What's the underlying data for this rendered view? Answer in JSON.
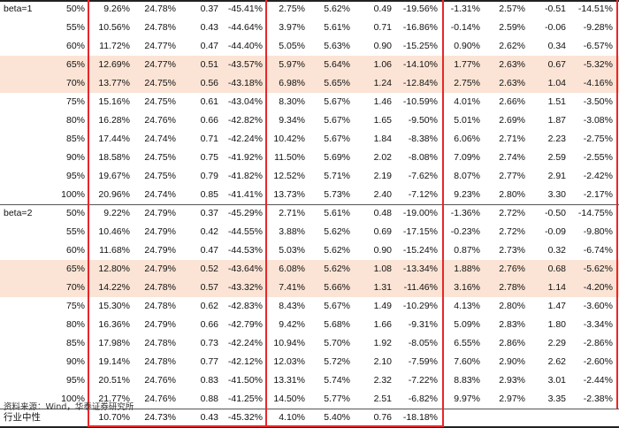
{
  "groups": [
    {
      "label": "beta=1",
      "rows": [
        [
          "50%",
          "9.26%",
          "24.78%",
          "0.37",
          "-45.41%",
          "2.75%",
          "5.62%",
          "0.49",
          "-19.56%",
          "-1.31%",
          "2.57%",
          "-0.51",
          "-14.51%"
        ],
        [
          "55%",
          "10.56%",
          "24.78%",
          "0.43",
          "-44.64%",
          "3.97%",
          "5.61%",
          "0.71",
          "-16.86%",
          "-0.14%",
          "2.59%",
          "-0.06",
          "-9.28%"
        ],
        [
          "60%",
          "11.72%",
          "24.77%",
          "0.47",
          "-44.40%",
          "5.05%",
          "5.63%",
          "0.90",
          "-15.25%",
          "0.90%",
          "2.62%",
          "0.34",
          "-6.57%"
        ],
        [
          "65%",
          "12.69%",
          "24.77%",
          "0.51",
          "-43.57%",
          "5.97%",
          "5.64%",
          "1.06",
          "-14.10%",
          "1.77%",
          "2.63%",
          "0.67",
          "-5.32%"
        ],
        [
          "70%",
          "13.77%",
          "24.75%",
          "0.56",
          "-43.18%",
          "6.98%",
          "5.65%",
          "1.24",
          "-12.84%",
          "2.75%",
          "2.63%",
          "1.04",
          "-4.16%"
        ],
        [
          "75%",
          "15.16%",
          "24.75%",
          "0.61",
          "-43.04%",
          "8.30%",
          "5.67%",
          "1.46",
          "-10.59%",
          "4.01%",
          "2.66%",
          "1.51",
          "-3.50%"
        ],
        [
          "80%",
          "16.28%",
          "24.76%",
          "0.66",
          "-42.82%",
          "9.34%",
          "5.67%",
          "1.65",
          "-9.50%",
          "5.01%",
          "2.69%",
          "1.87",
          "-3.08%"
        ],
        [
          "85%",
          "17.44%",
          "24.74%",
          "0.71",
          "-42.24%",
          "10.42%",
          "5.67%",
          "1.84",
          "-8.38%",
          "6.06%",
          "2.71%",
          "2.23",
          "-2.75%"
        ],
        [
          "90%",
          "18.58%",
          "24.75%",
          "0.75",
          "-41.92%",
          "11.50%",
          "5.69%",
          "2.02",
          "-8.08%",
          "7.09%",
          "2.74%",
          "2.59",
          "-2.55%"
        ],
        [
          "95%",
          "19.67%",
          "24.75%",
          "0.79",
          "-41.82%",
          "12.52%",
          "5.71%",
          "2.19",
          "-7.62%",
          "8.07%",
          "2.77%",
          "2.91",
          "-2.42%"
        ],
        [
          "100%",
          "20.96%",
          "24.74%",
          "0.85",
          "-41.41%",
          "13.73%",
          "5.73%",
          "2.40",
          "-7.12%",
          "9.23%",
          "2.80%",
          "3.30",
          "-2.17%"
        ]
      ]
    },
    {
      "label": "beta=2",
      "rows": [
        [
          "50%",
          "9.22%",
          "24.79%",
          "0.37",
          "-45.29%",
          "2.71%",
          "5.61%",
          "0.48",
          "-19.00%",
          "-1.36%",
          "2.72%",
          "-0.50",
          "-14.75%"
        ],
        [
          "55%",
          "10.46%",
          "24.79%",
          "0.42",
          "-44.55%",
          "3.88%",
          "5.62%",
          "0.69",
          "-17.15%",
          "-0.23%",
          "2.72%",
          "-0.09",
          "-9.80%"
        ],
        [
          "60%",
          "11.68%",
          "24.79%",
          "0.47",
          "-44.53%",
          "5.03%",
          "5.62%",
          "0.90",
          "-15.24%",
          "0.87%",
          "2.73%",
          "0.32",
          "-6.74%"
        ],
        [
          "65%",
          "12.80%",
          "24.79%",
          "0.52",
          "-43.64%",
          "6.08%",
          "5.62%",
          "1.08",
          "-13.34%",
          "1.88%",
          "2.76%",
          "0.68",
          "-5.62%"
        ],
        [
          "70%",
          "14.22%",
          "24.78%",
          "0.57",
          "-43.32%",
          "7.41%",
          "5.66%",
          "1.31",
          "-11.46%",
          "3.16%",
          "2.78%",
          "1.14",
          "-4.20%"
        ],
        [
          "75%",
          "15.30%",
          "24.78%",
          "0.62",
          "-42.83%",
          "8.43%",
          "5.67%",
          "1.49",
          "-10.29%",
          "4.13%",
          "2.80%",
          "1.47",
          "-3.60%"
        ],
        [
          "80%",
          "16.36%",
          "24.79%",
          "0.66",
          "-42.79%",
          "9.42%",
          "5.68%",
          "1.66",
          "-9.31%",
          "5.09%",
          "2.83%",
          "1.80",
          "-3.34%"
        ],
        [
          "85%",
          "17.98%",
          "24.78%",
          "0.73",
          "-42.24%",
          "10.94%",
          "5.70%",
          "1.92",
          "-8.05%",
          "6.55%",
          "2.86%",
          "2.29",
          "-2.86%"
        ],
        [
          "90%",
          "19.14%",
          "24.78%",
          "0.77",
          "-42.12%",
          "12.03%",
          "5.72%",
          "2.10",
          "-7.59%",
          "7.60%",
          "2.90%",
          "2.62",
          "-2.60%"
        ],
        [
          "95%",
          "20.51%",
          "24.76%",
          "0.83",
          "-41.50%",
          "13.31%",
          "5.74%",
          "2.32",
          "-7.22%",
          "8.83%",
          "2.93%",
          "3.01",
          "-2.44%"
        ],
        [
          "100%",
          "21.77%",
          "24.76%",
          "0.88",
          "-41.25%",
          "14.50%",
          "5.77%",
          "2.51",
          "-6.82%",
          "9.97%",
          "2.97%",
          "3.35",
          "-2.38%"
        ]
      ]
    }
  ],
  "highlighted_pcts": [
    "65%",
    "70%"
  ],
  "neutral_row": {
    "label": "行业中性",
    "values": [
      "10.70%",
      "24.73%",
      "0.43",
      "-45.32%",
      "4.10%",
      "5.40%",
      "0.76",
      "-18.18%"
    ]
  },
  "footnote": "资料来源：Wind，华泰证券研究所",
  "colors": {
    "highlight": "#fbe4d5",
    "border": "#e8262a"
  }
}
